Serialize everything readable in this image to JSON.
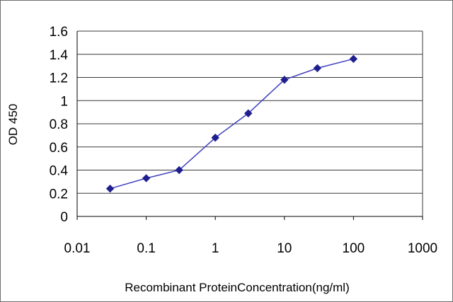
{
  "chart_data": {
    "type": "line",
    "xscale": "log",
    "xlim": [
      0.01,
      1000
    ],
    "ylim": [
      0,
      1.6
    ],
    "xlabel": "Recombinant ProteinConcentration(ng/ml)",
    "ylabel": "OD 450",
    "x_ticks": [
      "0.01",
      "0.1",
      "1",
      "10",
      "100",
      "1000"
    ],
    "y_ticks": [
      "0",
      "0.2",
      "0.4",
      "0.6",
      "0.8",
      "1",
      "1.2",
      "1.4",
      "1.6"
    ],
    "grid": "horizontal",
    "legend": "none",
    "series": [
      {
        "x": [
          0.03,
          0.1,
          0.3,
          1,
          3,
          10,
          30,
          100
        ],
        "y": [
          0.24,
          0.33,
          0.4,
          0.68,
          0.89,
          1.18,
          1.28,
          1.36
        ]
      }
    ],
    "colors": {
      "line": "#3f3fbf",
      "marker": "#1f1f8f",
      "grid": "#3a3a3a",
      "axis": "#000000",
      "frame": "#6e6e6e"
    },
    "marker": "diamond"
  }
}
